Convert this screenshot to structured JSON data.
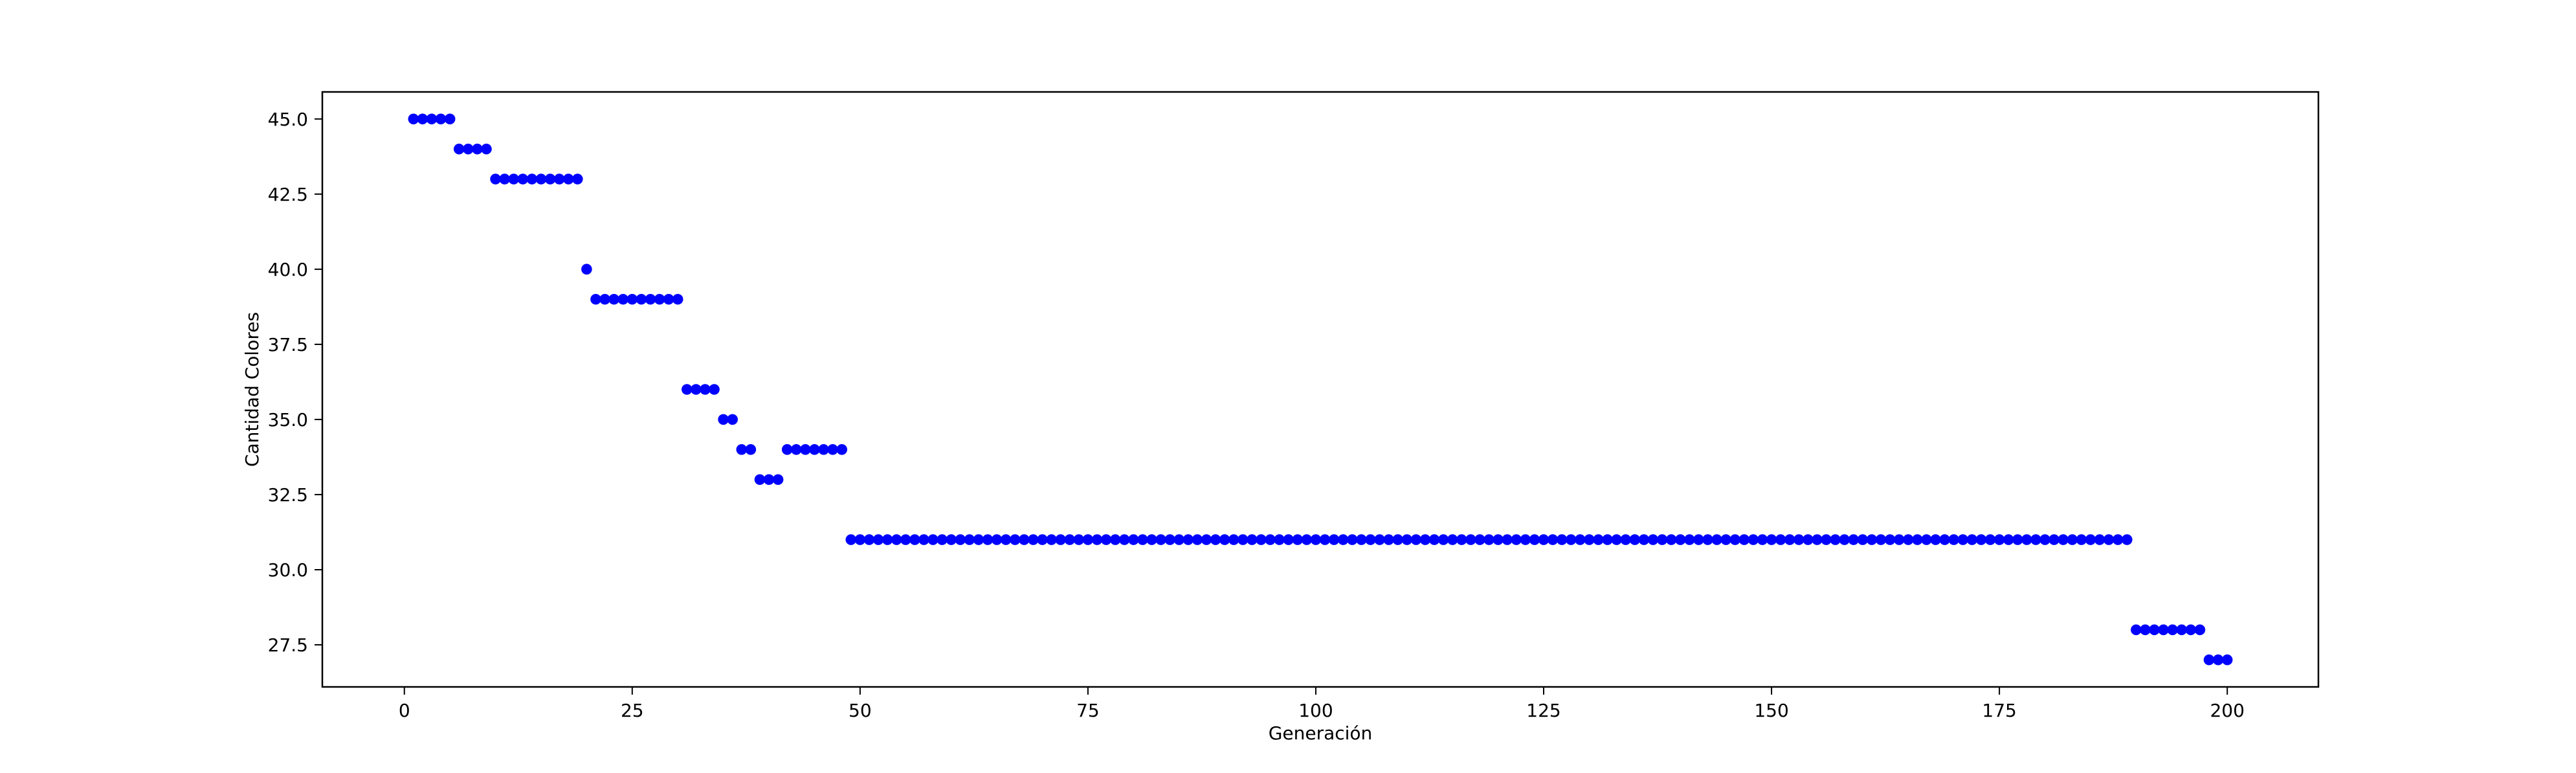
{
  "chart_data": {
    "type": "scatter",
    "title": "",
    "xlabel": "Generación",
    "ylabel": "Cantidad Colores",
    "xlim": [
      -9,
      210
    ],
    "ylim": [
      26.1,
      45.9
    ],
    "xticks": [
      0,
      25,
      50,
      75,
      100,
      125,
      150,
      175,
      200
    ],
    "yticks": [
      27.5,
      30.0,
      32.5,
      35.0,
      37.5,
      40.0,
      42.5,
      45.0
    ],
    "ytick_labels": [
      "27.5",
      "30.0",
      "32.5",
      "35.0",
      "37.5",
      "40.0",
      "42.5",
      "45.0"
    ],
    "grid": false,
    "marker_color": "#0000ff",
    "series": [
      {
        "runs": [
          {
            "x_start": 1,
            "x_end": 5,
            "y": 45
          },
          {
            "x_start": 6,
            "x_end": 9,
            "y": 44
          },
          {
            "x_start": 10,
            "x_end": 19,
            "y": 43
          },
          {
            "x_start": 20,
            "x_end": 20,
            "y": 40
          },
          {
            "x_start": 21,
            "x_end": 30,
            "y": 39
          },
          {
            "x_start": 31,
            "x_end": 34,
            "y": 36
          },
          {
            "x_start": 35,
            "x_end": 36,
            "y": 35
          },
          {
            "x_start": 37,
            "x_end": 38,
            "y": 34
          },
          {
            "x_start": 39,
            "x_end": 41,
            "y": 33
          },
          {
            "x_start": 42,
            "x_end": 48,
            "y": 34
          },
          {
            "x_start": 49,
            "x_end": 189,
            "y": 31
          },
          {
            "x_start": 190,
            "x_end": 197,
            "y": 28
          },
          {
            "x_start": 198,
            "x_end": 200,
            "y": 27
          }
        ]
      }
    ]
  }
}
